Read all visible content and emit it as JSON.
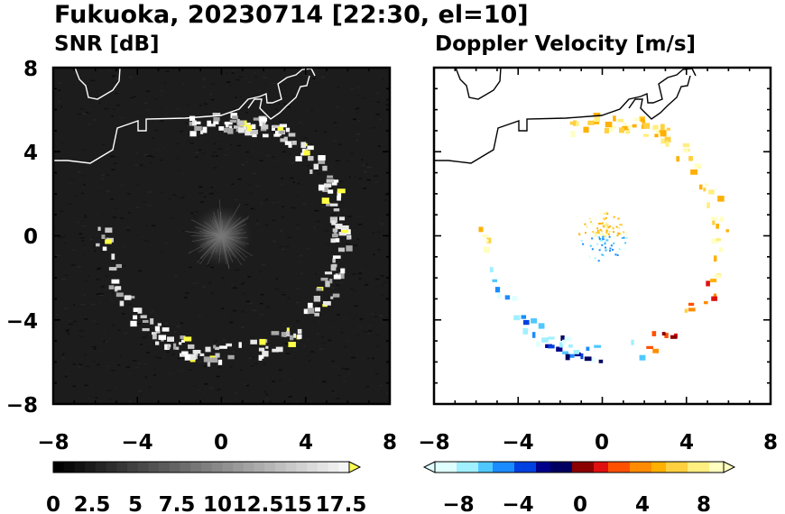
{
  "chart_title": "Fukuoka, 20230714 [22:30, el=10]",
  "chart_data": [
    {
      "type": "heatmap",
      "title": "SNR [dB]",
      "xlim": [
        -8,
        8
      ],
      "ylim": [
        -8,
        8
      ],
      "x_ticks": [
        "−8",
        "−4",
        "0",
        "4",
        "8"
      ],
      "y_ticks": [
        "8",
        "4",
        "0",
        "−4",
        "−8"
      ],
      "colormap": "greyscale (black → white → yellow)",
      "background": "#1a1a1a",
      "colorbar": {
        "ticks": [
          "0",
          "2.5",
          "5",
          "7.5",
          "10",
          "12.5",
          "15",
          "17.5"
        ],
        "range": [
          0,
          18.5
        ],
        "extend": "max"
      },
      "echo_ring_radius_km": 5.6,
      "features": [
        "coastline (white)",
        "ring of clutter/echo",
        "near-radar noise core"
      ]
    },
    {
      "type": "heatmap",
      "title": "Doppler Velocity [m/s]",
      "xlim": [
        -8,
        8
      ],
      "ylim": [
        -8,
        8
      ],
      "x_ticks": [
        "−8",
        "−4",
        "0",
        "4",
        "8"
      ],
      "y_ticks": [
        "8",
        "4",
        "0",
        "−4",
        "−8"
      ],
      "colormap": "diverging (cyan/blue negative → red/orange/yellow positive)",
      "background": "#ffffff",
      "colorbar": {
        "ticks": [
          "−8",
          "−4",
          "0",
          "4",
          "8"
        ],
        "range": [
          -10,
          10
        ],
        "extend": "both"
      },
      "features": [
        "coastline (black)",
        "sparse echoes along ring",
        "core near radar"
      ]
    }
  ],
  "colors": {
    "snr_cmap": [
      "#000000",
      "#2a2a2a",
      "#555555",
      "#808080",
      "#aaaaaa",
      "#d4d4d4",
      "#f0f0f0",
      "#ffff55"
    ],
    "vel_cmap": [
      "#e0ffff",
      "#a0f0ff",
      "#50c8ff",
      "#1a8cff",
      "#0040e0",
      "#00008b",
      "#000060",
      "#8b0000",
      "#e01010",
      "#ff5000",
      "#ff8c00",
      "#ffb000",
      "#ffd040",
      "#ffee80",
      "#ffffc0"
    ]
  }
}
